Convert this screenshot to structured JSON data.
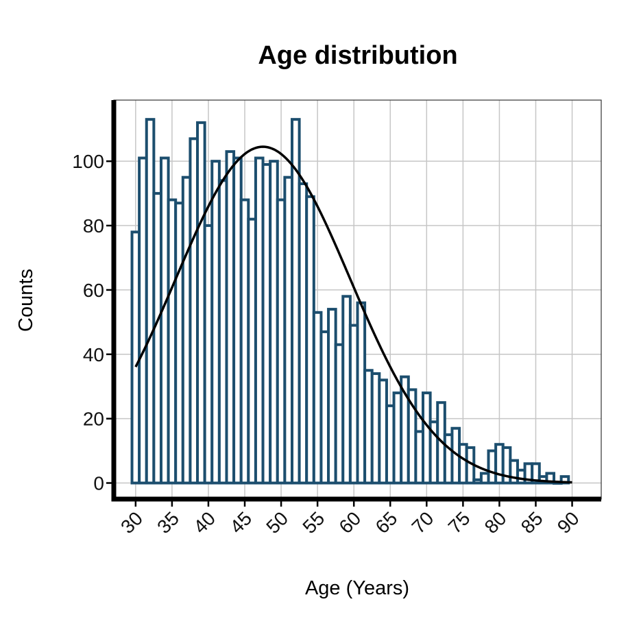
{
  "chart_data": {
    "type": "bar",
    "title": "Age distribution",
    "xlabel": "Age (Years)",
    "ylabel": "Counts",
    "xlim": [
      27,
      94
    ],
    "ylim": [
      -5,
      119
    ],
    "grid": true,
    "legend": "none",
    "bar_color": "#1c4e6e",
    "curve_color": "#000000",
    "x_ticks": [
      30,
      35,
      40,
      45,
      50,
      55,
      60,
      65,
      70,
      75,
      80,
      85,
      90
    ],
    "y_ticks": [
      0,
      20,
      40,
      60,
      80,
      100
    ],
    "bins": {
      "start": 30,
      "width": 1,
      "counts": [
        78,
        101,
        113,
        90,
        101,
        88,
        87,
        95,
        107,
        112,
        80,
        100,
        94,
        103,
        101,
        88,
        82,
        101,
        99,
        100,
        88,
        95,
        113,
        93,
        89,
        53,
        47,
        54,
        43,
        58,
        49,
        56,
        35,
        34,
        32,
        24,
        28,
        33,
        29,
        16,
        28,
        19,
        25,
        15,
        17,
        12,
        11,
        1,
        3,
        10,
        12,
        11,
        7,
        4,
        6,
        6,
        2,
        3,
        0,
        2
      ]
    },
    "fit_curve": {
      "type": "normal",
      "mean": 47.5,
      "sd": 12.0,
      "peak": 104.5,
      "x_range": [
        30,
        90
      ]
    }
  }
}
